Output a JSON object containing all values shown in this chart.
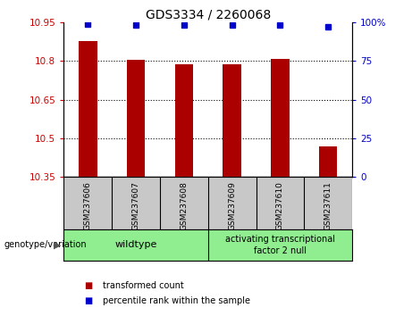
{
  "title": "GDS3334 / 2260068",
  "samples": [
    "GSM237606",
    "GSM237607",
    "GSM237608",
    "GSM237609",
    "GSM237610",
    "GSM237611"
  ],
  "bar_values": [
    10.875,
    10.805,
    10.785,
    10.785,
    10.807,
    10.47
  ],
  "percentile_values": [
    99,
    98,
    98,
    98,
    98,
    97
  ],
  "ylim_left": [
    10.35,
    10.95
  ],
  "ylim_right": [
    0,
    100
  ],
  "yticks_left": [
    10.35,
    10.5,
    10.65,
    10.8,
    10.95
  ],
  "yticks_right": [
    0,
    25,
    50,
    75,
    100
  ],
  "ytick_labels_left": [
    "10.35",
    "10.5",
    "10.65",
    "10.8",
    "10.95"
  ],
  "ytick_labels_right": [
    "0",
    "25",
    "50",
    "75",
    "100%"
  ],
  "bar_color": "#AA0000",
  "dot_color": "#0000CC",
  "wildtype_count": 3,
  "atf2_label": "activating transcriptional\nfactor 2 null",
  "wildtype_label": "wildtype",
  "group_bg": "#90EE90",
  "sample_bg": "#C8C8C8",
  "legend_items": [
    {
      "color": "#AA0000",
      "label": "transformed count"
    },
    {
      "color": "#0000CC",
      "label": "percentile rank within the sample"
    }
  ],
  "tick_color_left": "#CC0000",
  "tick_color_right": "#0000CC",
  "genotype_label": "genotype/variation"
}
